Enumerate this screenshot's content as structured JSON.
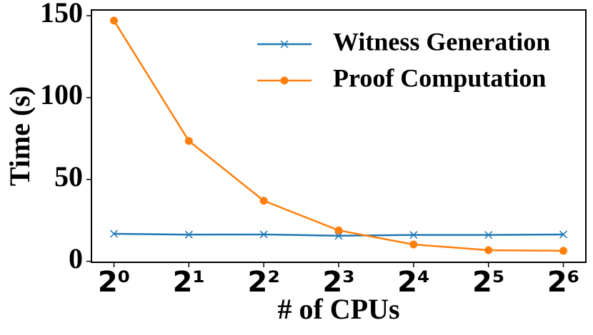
{
  "chart_data": {
    "type": "line",
    "x": [
      1,
      2,
      4,
      8,
      16,
      32,
      64
    ],
    "xscale": "log",
    "xbase": 2,
    "xlim": [
      0.812,
      78.8
    ],
    "xticks": [
      {
        "value": 1,
        "label": "2⁰"
      },
      {
        "value": 2,
        "label": "2¹"
      },
      {
        "value": 4,
        "label": "2²"
      },
      {
        "value": 8,
        "label": "2³"
      },
      {
        "value": 16,
        "label": "2⁴"
      },
      {
        "value": 32,
        "label": "2⁵"
      },
      {
        "value": 64,
        "label": "2⁶"
      }
    ],
    "ylim": [
      -0.6,
      153.5
    ],
    "yticks": [
      0,
      50,
      100,
      150
    ],
    "xlabel": "# of CPUs",
    "ylabel": "Time (s)",
    "legend": "upper right",
    "series": [
      {
        "name": "Witness Generation",
        "color": "#1f77b4",
        "marker": "x",
        "values": [
          16.8,
          16.3,
          16.4,
          15.6,
          16.1,
          16.1,
          16.4
        ]
      },
      {
        "name": "Proof Computation",
        "color": "#ff7f0e",
        "marker": "o",
        "values": [
          147,
          73.5,
          37,
          18.9,
          10.3,
          6.8,
          6.4
        ]
      }
    ]
  }
}
